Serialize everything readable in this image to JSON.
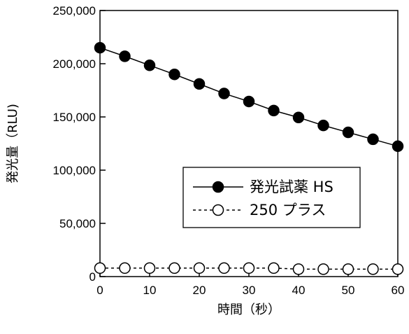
{
  "chart_data": {
    "type": "line",
    "title": "",
    "xlabel": "時間（秒）",
    "ylabel": "発光量（RLU)",
    "xlim": [
      0,
      60
    ],
    "ylim": [
      0,
      250000
    ],
    "x_ticks": [
      0,
      10,
      20,
      30,
      40,
      50,
      60
    ],
    "x_tick_labels": [
      "0",
      "10",
      "20",
      "30",
      "40",
      "50",
      "60"
    ],
    "y_ticks": [
      0,
      50000,
      100000,
      150000,
      200000,
      250000
    ],
    "y_tick_labels": [
      "0",
      "50,000",
      "100,000",
      "150,000",
      "200,000",
      "250,000"
    ],
    "grid": false,
    "legend_position": "center-right",
    "x": [
      0,
      5,
      10,
      15,
      20,
      25,
      30,
      35,
      40,
      45,
      50,
      55,
      60
    ],
    "series": [
      {
        "name": "発光試薬 HS",
        "line_style": "solid",
        "marker": "filled-circle",
        "color": "#000000",
        "values": [
          215000,
          207000,
          198500,
          190000,
          181000,
          172000,
          164500,
          156000,
          149500,
          142000,
          135500,
          129000,
          122500
        ]
      },
      {
        "name": "250 プラス",
        "line_style": "dashed",
        "marker": "open-circle",
        "color": "#000000",
        "values": [
          8000,
          8000,
          8000,
          8000,
          8000,
          8000,
          8000,
          8000,
          7000,
          7000,
          7000,
          7000,
          7000
        ]
      }
    ]
  }
}
